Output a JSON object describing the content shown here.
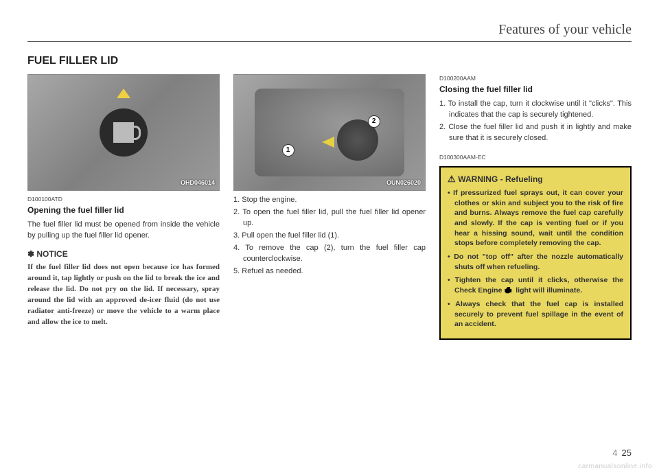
{
  "header": {
    "section_title": "Features of your vehicle",
    "main_title": "FUEL FILLER LID"
  },
  "col1": {
    "figure_label": "OHD046014",
    "code": "D100100ATD",
    "heading": "Opening the fuel filler lid",
    "body": "The fuel filler lid must be opened from inside the vehicle by pulling up the fuel filler lid opener.",
    "notice_title": "NOTICE",
    "notice_text": "If the fuel filler lid does not open because ice has formed around it, tap lightly or push on the lid to break the ice and release the lid. Do not pry on the lid. If necessary, spray around the lid with an approved de-icer fluid (do not use radiator anti-freeze) or move the vehicle to a warm place and allow the ice to melt."
  },
  "col2": {
    "figure_label": "OUN026020",
    "marker1": "1",
    "marker2": "2",
    "steps": [
      "Stop the engine.",
      "To open the fuel filler lid, pull the fuel filler lid opener up.",
      "Pull open the fuel filler lid (1).",
      "To remove the cap (2), turn the fuel filler cap counterclockwise.",
      "Refuel as needed."
    ]
  },
  "col3": {
    "code1": "D100200AAM",
    "heading": "Closing the fuel filler lid",
    "steps": [
      "To install the cap, turn it clockwise until it \"clicks\". This indicates that the cap is securely tightened.",
      "Close the fuel filler lid and push it in lightly and make sure that it is securely closed."
    ],
    "code2": "D100300AAM-EC",
    "warning_title": "WARNING - Refueling",
    "warnings": [
      "If pressurized fuel sprays out, it can cover your clothes or skin and subject you to the risk of fire and burns. Always remove the fuel cap carefully and slowly. If the cap is venting fuel or if you hear a hissing sound, wait until the condition stops before completely removing the cap.",
      "Do not \"top off\" after the nozzle automatically shuts off when refueling.",
      "Tighten the cap until it clicks, otherwise the Check Engine       light will illuminate.",
      "Always check that the fuel cap is installed securely to prevent fuel spillage in the event of an accident."
    ]
  },
  "footer": {
    "chapter": "4",
    "page": "25",
    "watermark": "carmanualsonline.info"
  }
}
